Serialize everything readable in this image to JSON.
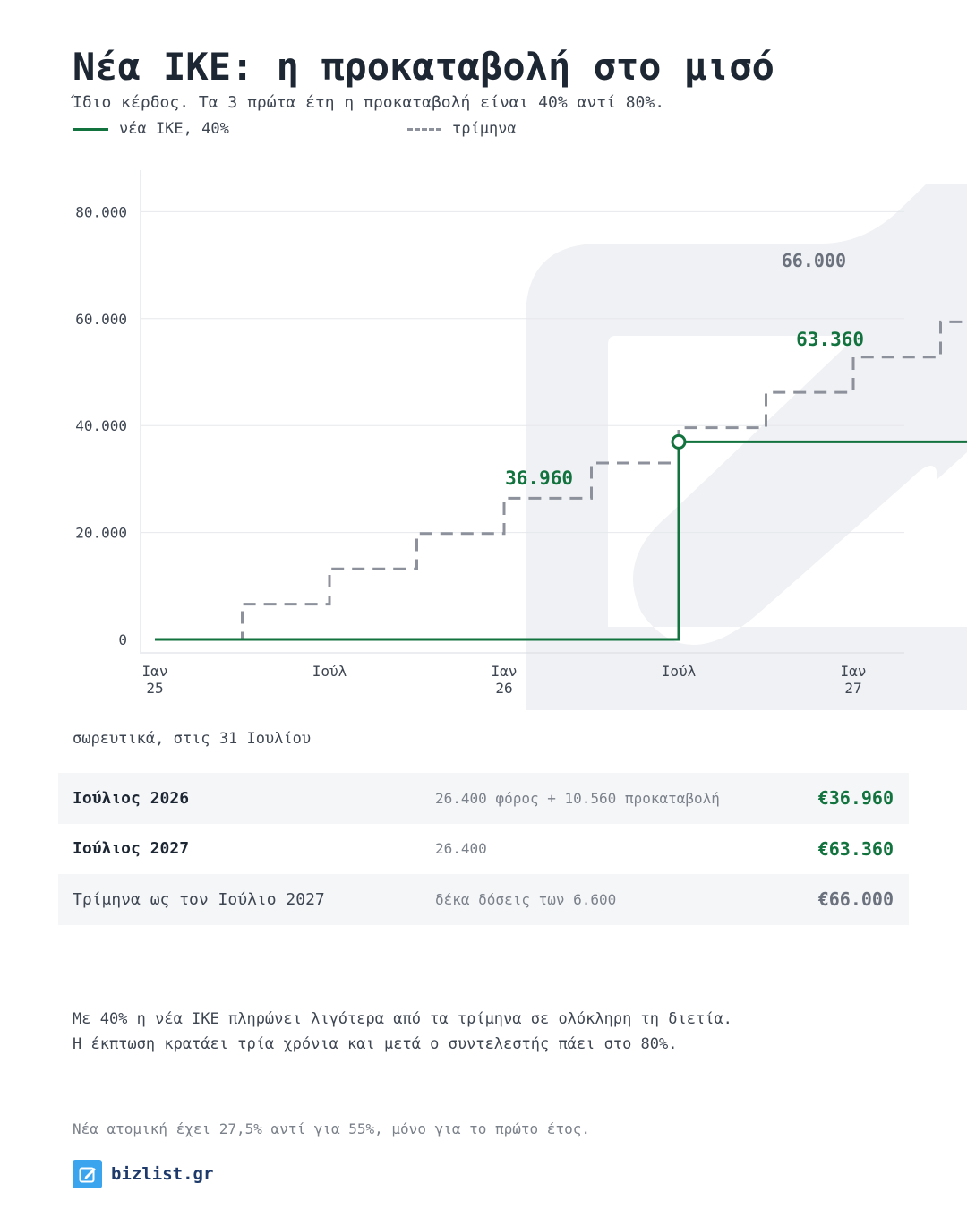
{
  "header": {
    "title": "Νέα ΙΚΕ: η προκαταβολή στο μισό",
    "subtitle": "Ίδιο κέρδος. Τα 3 πρώτα έτη η προκαταβολή είναι 40% αντί 80%."
  },
  "colors": {
    "green": "#12733f",
    "gray_dash": "#8c919b",
    "watermark": "#f0f1f4",
    "text_dark": "#1d2633"
  },
  "chart_data": {
    "type": "line",
    "ylim": [
      0,
      80000
    ],
    "yticks": [
      0,
      20000,
      40000,
      60000,
      80000
    ],
    "ytick_labels": [
      "0",
      "20.000",
      "40.000",
      "60.000",
      "80.000"
    ],
    "xticks": [
      {
        "t": 0,
        "label": [
          "Ιαν",
          "25"
        ]
      },
      {
        "t": 6,
        "label": [
          "Ιούλ",
          ""
        ]
      },
      {
        "t": 12,
        "label": [
          "Ιαν",
          "26"
        ]
      },
      {
        "t": 18,
        "label": [
          "Ιούλ",
          ""
        ]
      },
      {
        "t": 24,
        "label": [
          "Ιαν",
          "27"
        ]
      },
      {
        "t": 30,
        "label": [
          "Ιούλ",
          ""
        ]
      }
    ],
    "grid": true,
    "series": [
      {
        "name": "νέα ΙΚΕ, 40%",
        "style": "solid",
        "step_x": [
          0,
          18,
          30
        ],
        "step_y": [
          0,
          36960,
          63360
        ],
        "end_x": 30,
        "markers": [
          {
            "x": 18,
            "y": 36960,
            "label": "36.960"
          },
          {
            "x": 30,
            "y": 63360,
            "label": "63.360"
          }
        ]
      },
      {
        "name": "τρίμηνα",
        "style": "dashed",
        "step_x": [
          0,
          3,
          6,
          9,
          12,
          15,
          18,
          21,
          24,
          27
        ],
        "step_y": [
          0,
          6600,
          13200,
          19800,
          26400,
          33000,
          39600,
          46200,
          52800,
          59400
        ],
        "end_x": 30,
        "markers": [
          {
            "x": 30,
            "y": 66000,
            "label": "66.000"
          }
        ]
      }
    ]
  },
  "caption": "σωρευτικά, στις 31 Ιουλίου",
  "table": {
    "rows": [
      {
        "label": "Ιούλιος 2026",
        "detail": "26.400 φόρος + 10.560 προκαταβολή",
        "value": "€36.960"
      },
      {
        "label": "Ιούλιος 2027",
        "detail": "26.400",
        "value": "€63.360"
      },
      {
        "label": "Τρίμηνα ως τον Ιούλιο 2027",
        "detail": "δέκα δόσεις των 6.600",
        "value": "€66.000"
      }
    ]
  },
  "note": {
    "line1": "Με 40% η νέα ΙΚΕ πληρώνει λιγότερα από τα τρίμηνα σε ολόκληρη τη διετία.",
    "line2": "Η έκπτωση κρατάει τρία χρόνια και μετά ο συντελεστής πάει στο 80%."
  },
  "footnote": "Νέα ατομική έχει 27,5% αντί για 55%, μόνο για το πρώτο έτος.",
  "brand": {
    "name": "bizlist.gr",
    "icon": "edit-icon"
  }
}
